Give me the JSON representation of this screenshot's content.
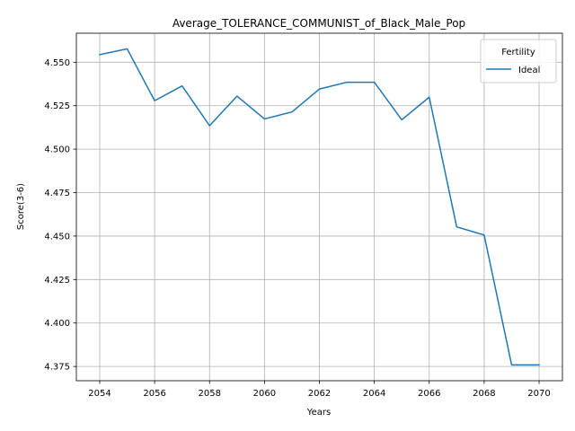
{
  "chart_data": {
    "type": "line",
    "title": "Average_TOLERANCE_COMMUNIST_of_Black_Male_Pop",
    "xlabel": "Years",
    "ylabel": "Score(3-6)",
    "xlim": [
      2053.15,
      2070.85
    ],
    "ylim": [
      4.3668,
      4.5667
    ],
    "x_ticks": [
      2054,
      2056,
      2058,
      2060,
      2062,
      2064,
      2066,
      2068,
      2070
    ],
    "x_tick_labels": [
      "2054",
      "2056",
      "2058",
      "2060",
      "2062",
      "2064",
      "2066",
      "2068",
      "2070"
    ],
    "y_ticks": [
      4.375,
      4.4,
      4.425,
      4.45,
      4.475,
      4.5,
      4.525,
      4.55
    ],
    "y_tick_labels": [
      "4.375",
      "4.400",
      "4.425",
      "4.450",
      "4.475",
      "4.500",
      "4.525",
      "4.550"
    ],
    "grid": true,
    "legend": {
      "title": "Fertility",
      "placement": "top-right"
    },
    "x": [
      2054,
      2055,
      2056,
      2057,
      2058,
      2059,
      2060,
      2061,
      2062,
      2063,
      2064,
      2065,
      2066,
      2067,
      2068,
      2069,
      2070
    ],
    "series": [
      {
        "name": "Ideal",
        "color": "#1f77b4",
        "values": [
          4.5544,
          4.5577,
          4.5279,
          4.5364,
          4.5135,
          4.5305,
          4.5174,
          4.5214,
          4.5346,
          4.5385,
          4.5385,
          4.5169,
          4.5299,
          4.4553,
          4.4506,
          4.3759,
          4.3759
        ]
      }
    ]
  }
}
